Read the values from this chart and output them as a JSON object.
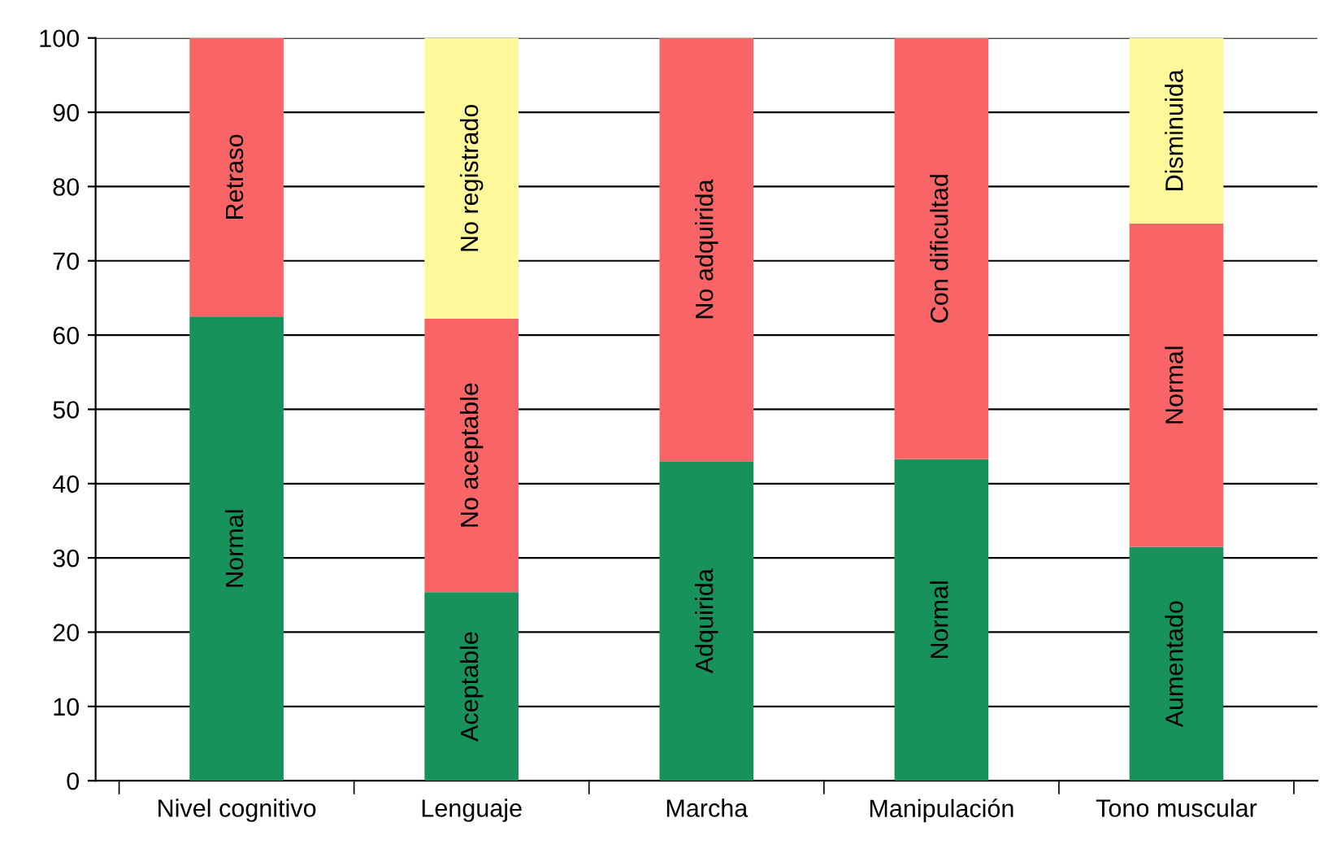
{
  "chart_data": {
    "type": "bar",
    "stacked": true,
    "categories": [
      "Nivel cognitivo",
      "Lenguaje",
      "Marcha",
      "Manipulación",
      "Tono muscular"
    ],
    "series": [
      {
        "color": "#17925a",
        "values": [
          62.5,
          25.4,
          43.0,
          43.3,
          31.5
        ],
        "value_labels": [
          "Normal",
          "Aceptable",
          "Adquirida",
          "Normal",
          "Aumentado"
        ]
      },
      {
        "color": "#f96566",
        "values": [
          37.5,
          36.8,
          57.0,
          56.7,
          43.5
        ],
        "value_labels": [
          "Retraso",
          "No aceptable",
          "No adquirida",
          "Con dificultad",
          "Normal"
        ]
      },
      {
        "color": "#fdf89a",
        "values": [
          null,
          37.8,
          null,
          null,
          25.0
        ],
        "value_labels": [
          null,
          "No registrado",
          null,
          null,
          "Disminuida"
        ]
      }
    ],
    "ylim": [
      0,
      100
    ],
    "yticks": [
      0,
      10,
      20,
      30,
      40,
      50,
      60,
      70,
      80,
      90,
      100
    ],
    "grid": "y",
    "legend": false
  }
}
